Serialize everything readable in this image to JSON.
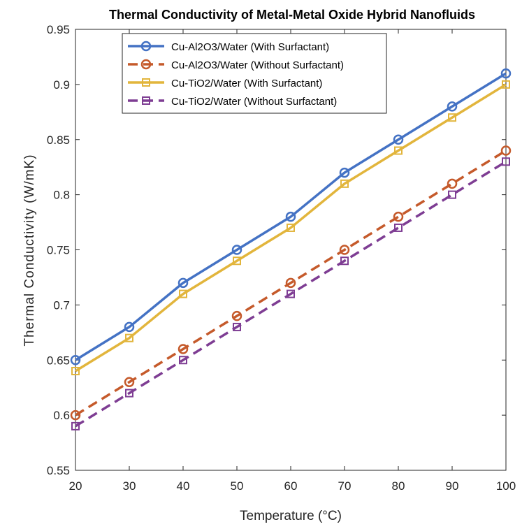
{
  "chart_data": {
    "type": "line",
    "title": "Thermal Conductivity of Metal-Metal Oxide Hybrid Nanofluids",
    "xlabel": "Temperature (°C)",
    "ylabel": "Thermal Conductivity (W/mK)",
    "x": [
      20,
      30,
      40,
      50,
      60,
      70,
      80,
      90,
      100
    ],
    "xlim": [
      20,
      100
    ],
    "ylim": [
      0.55,
      0.95
    ],
    "xticks": [
      20,
      30,
      40,
      50,
      60,
      70,
      80,
      90,
      100
    ],
    "yticks": [
      0.55,
      0.6,
      0.65,
      0.7,
      0.75,
      0.8,
      0.85,
      0.9,
      0.95
    ],
    "ytick_labels": [
      "0.55",
      "0.6",
      "0.65",
      "0.7",
      "0.75",
      "0.8",
      "0.85",
      "0.9",
      "0.95"
    ],
    "grid": false,
    "legend_position": "top-left",
    "series": [
      {
        "name": "Cu-Al2O3/Water (With Surfactant)",
        "values": [
          0.65,
          0.68,
          0.72,
          0.75,
          0.78,
          0.82,
          0.85,
          0.88,
          0.91
        ],
        "color": "#4472C4",
        "dash": "solid",
        "marker": "circle"
      },
      {
        "name": "Cu-Al2O3/Water (Without Surfactant)",
        "values": [
          0.6,
          0.63,
          0.66,
          0.69,
          0.72,
          0.75,
          0.78,
          0.81,
          0.84
        ],
        "color": "#C55A2B",
        "dash": "dashed",
        "marker": "circle"
      },
      {
        "name": "Cu-TiO2/Water (With Surfactant)",
        "values": [
          0.64,
          0.67,
          0.71,
          0.74,
          0.77,
          0.81,
          0.84,
          0.87,
          0.9
        ],
        "color": "#E2B53C",
        "dash": "solid",
        "marker": "square"
      },
      {
        "name": "Cu-TiO2/Water (Without Surfactant)",
        "values": [
          0.59,
          0.62,
          0.65,
          0.68,
          0.71,
          0.74,
          0.77,
          0.8,
          0.83
        ],
        "color": "#7E3D93",
        "dash": "dashed",
        "marker": "square"
      }
    ]
  }
}
